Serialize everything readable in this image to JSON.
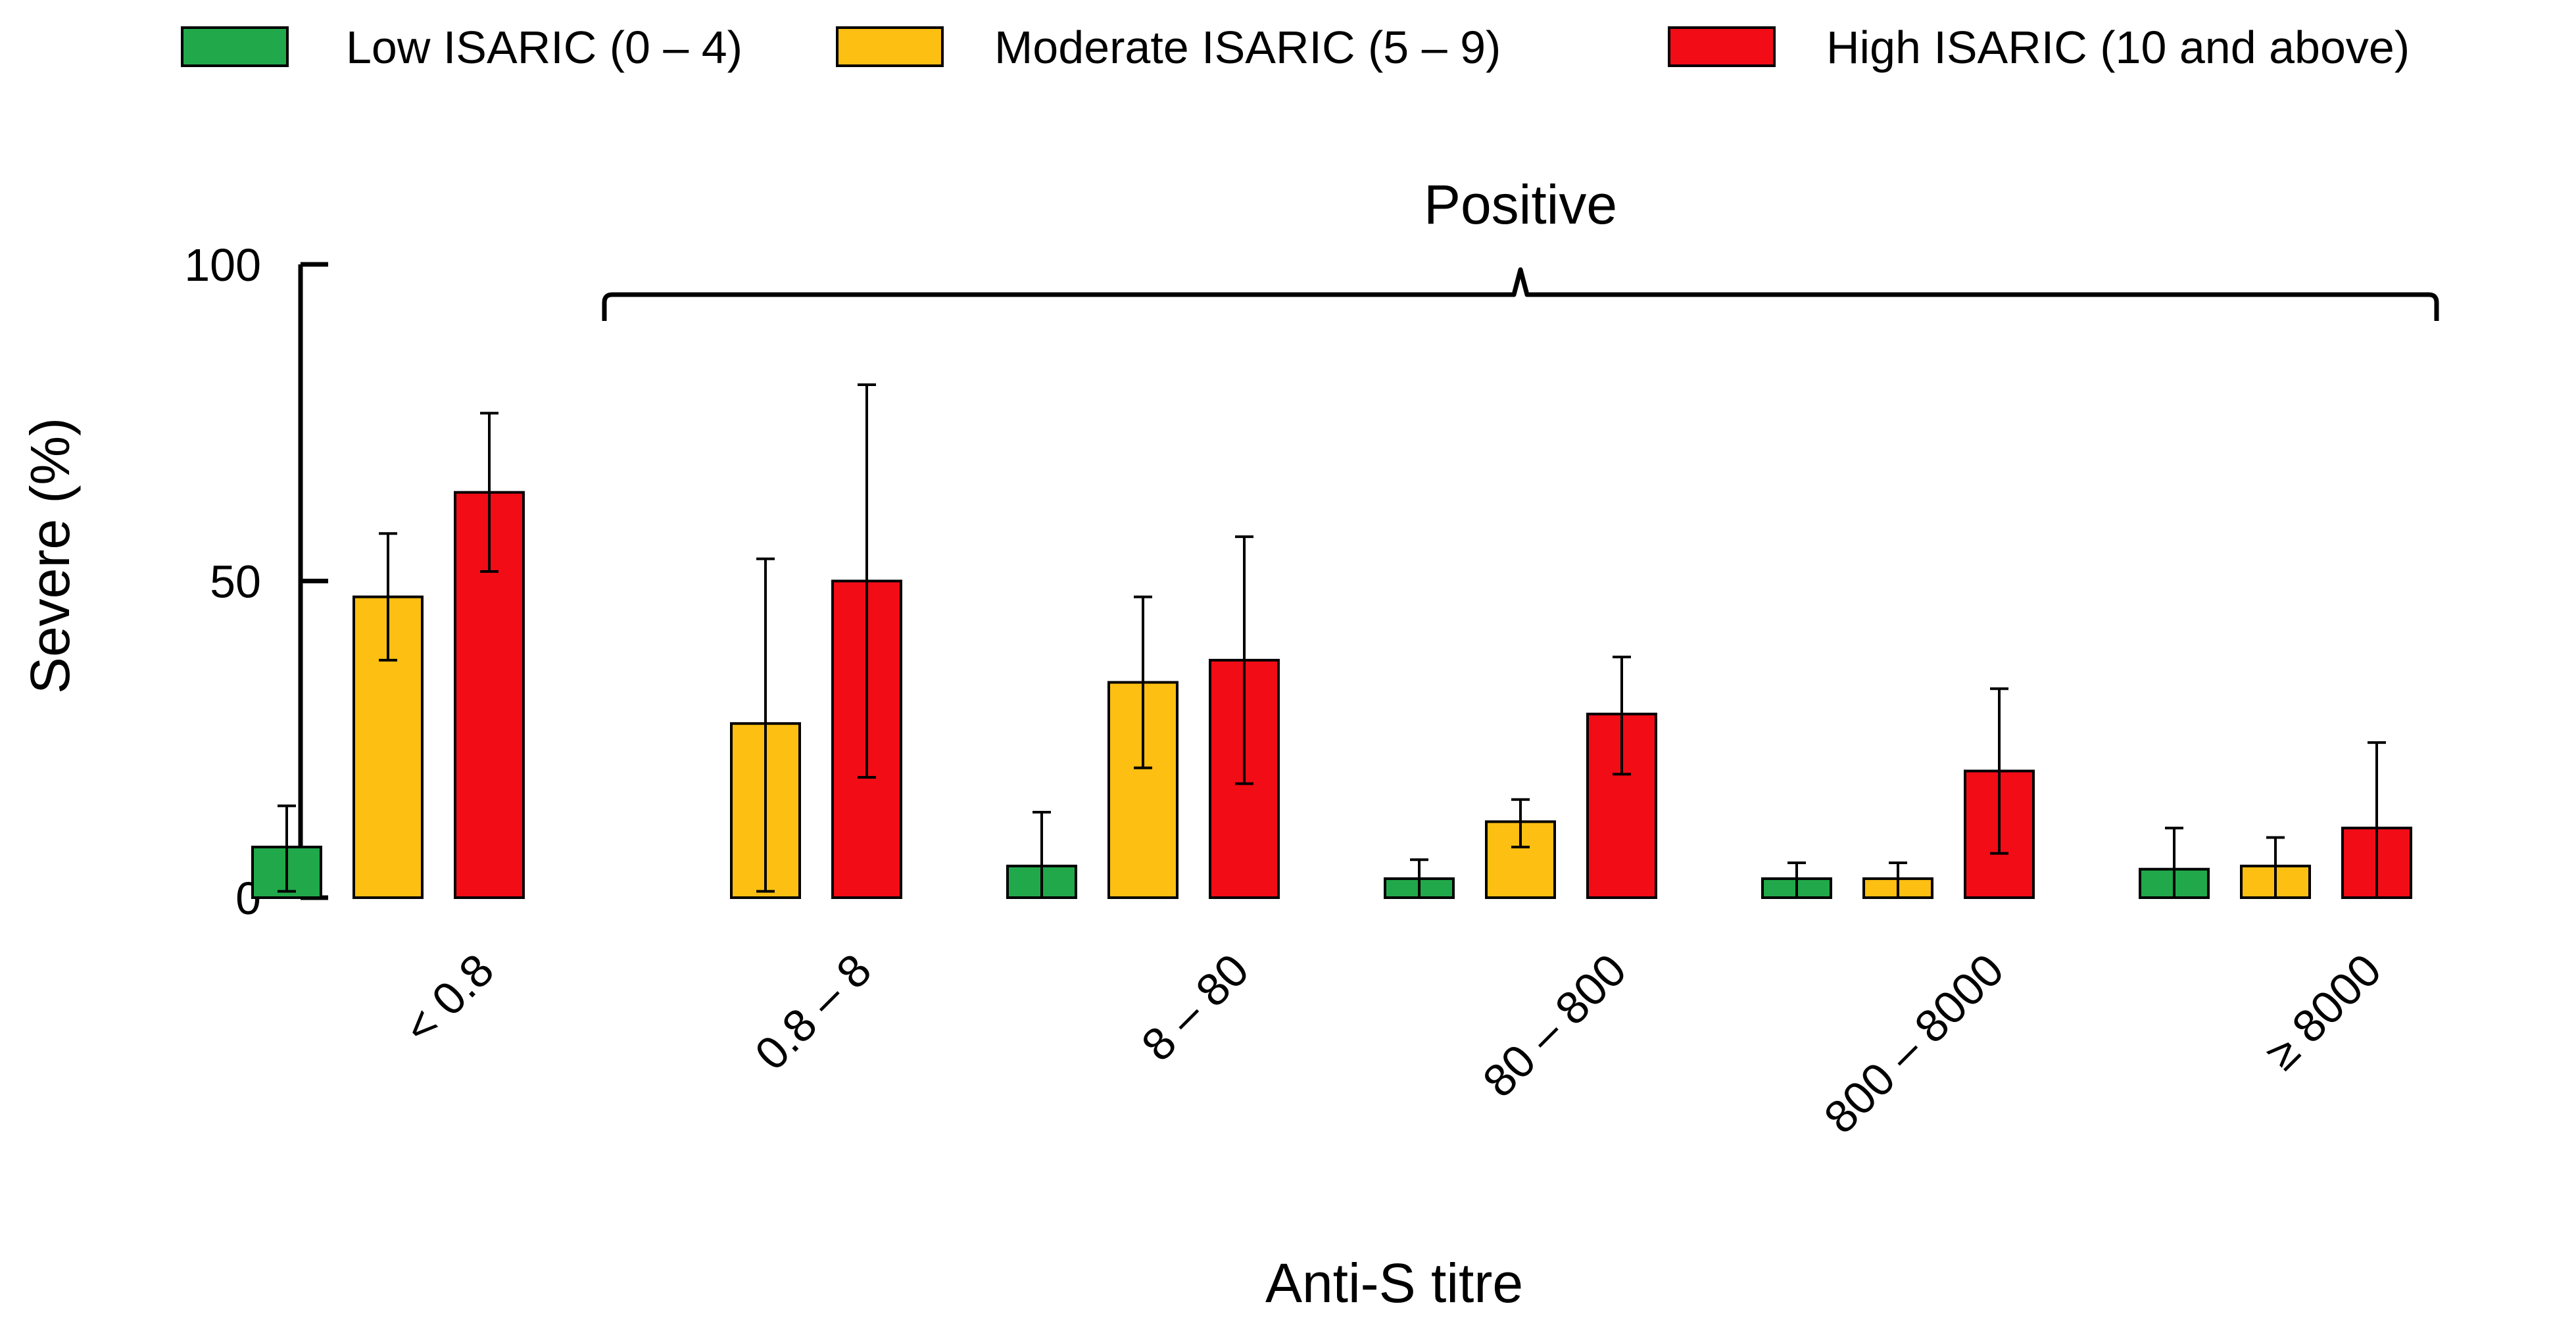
{
  "chart_data": {
    "type": "bar",
    "title": "",
    "xlabel": "Anti-S titre",
    "ylabel": "Severe (%)",
    "ylim": [
      0,
      100
    ],
    "yticks": [
      "0",
      "50",
      "100"
    ],
    "categories": [
      "< 0.8",
      "0.8 – 8",
      "8 – 80",
      "80 – 800",
      "800 – 8000",
      "≥ 8000"
    ],
    "series": [
      {
        "name": "Low ISARIC (0 – 4)",
        "color": "#21a84a",
        "values": [
          8,
          null,
          5,
          3,
          3,
          4.5
        ],
        "err_low": [
          1,
          null,
          0,
          0,
          0,
          0
        ],
        "err_high": [
          14.5,
          null,
          13.5,
          6,
          5.5,
          11
        ]
      },
      {
        "name": "Moderate ISARIC (5 – 9)",
        "color": "#fcbf12",
        "values": [
          47.5,
          27.5,
          34,
          12,
          3,
          5
        ],
        "err_low": [
          37.5,
          1,
          20.5,
          8,
          0,
          0
        ],
        "err_high": [
          57.5,
          53.5,
          47.5,
          15.5,
          5.5,
          9.5
        ]
      },
      {
        "name": "High ISARIC (10 and above)",
        "color": "#f20c16",
        "values": [
          64,
          50,
          37.5,
          29,
          20,
          11
        ],
        "err_low": [
          51.5,
          19,
          18,
          19.5,
          7,
          0
        ],
        "err_high": [
          76.5,
          81,
          57,
          38,
          33,
          24.5
        ]
      }
    ],
    "bracket": {
      "label": "Positive",
      "from_category": "0.8 – 8",
      "to_category": "≥ 8000"
    },
    "legend_position": "top"
  }
}
